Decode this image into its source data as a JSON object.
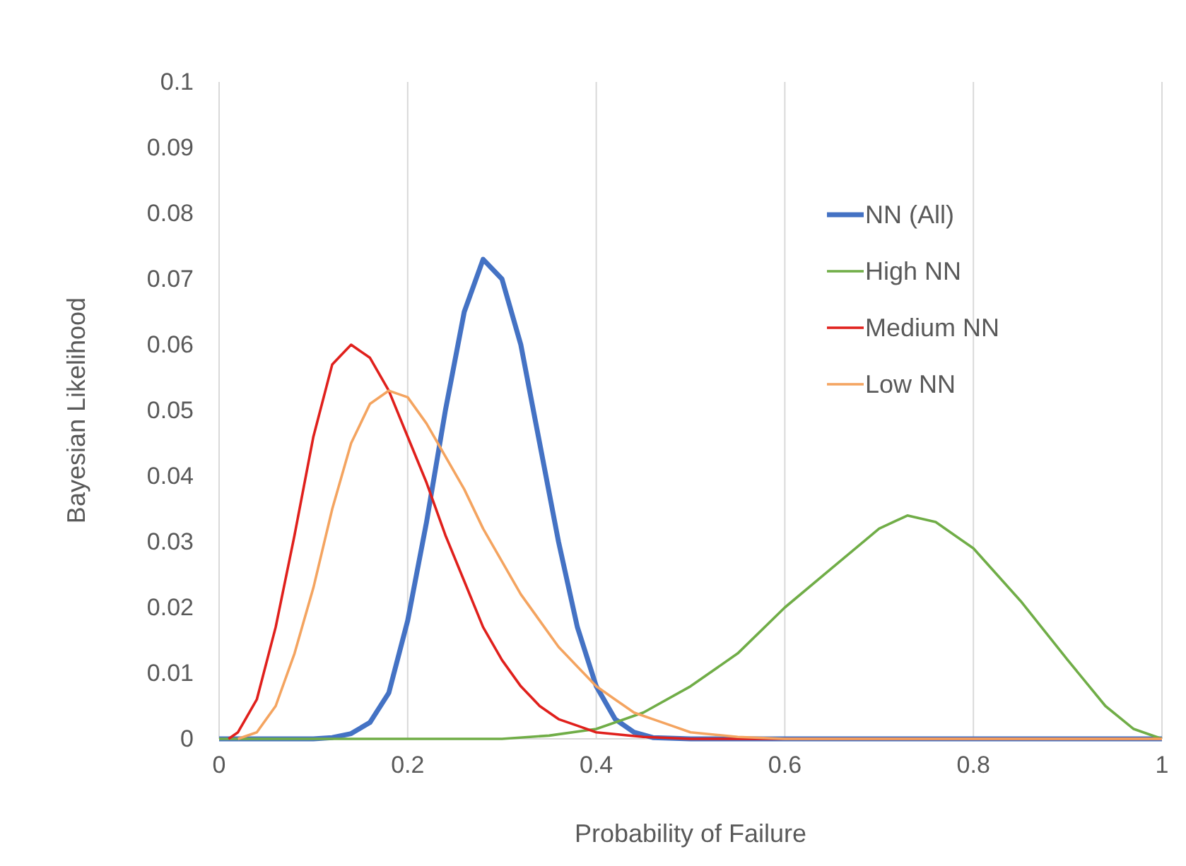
{
  "chart_data": {
    "type": "line",
    "xlabel": "Probability of Failure",
    "ylabel": "Bayesian Likelihood",
    "xlim": [
      0,
      1
    ],
    "ylim": [
      0,
      0.1
    ],
    "xticks": [
      0,
      0.2,
      0.4,
      0.6,
      0.8,
      1
    ],
    "yticks": [
      0,
      0.01,
      0.02,
      0.03,
      0.04,
      0.05,
      0.06,
      0.07,
      0.08,
      0.09,
      0.1
    ],
    "grid": "x",
    "legend": "top right",
    "marker": "none",
    "line_style": "solid",
    "series": [
      {
        "name": "NN (All)",
        "color": "#4472c4",
        "x": [
          0,
          0.1,
          0.12,
          0.14,
          0.16,
          0.18,
          0.2,
          0.22,
          0.24,
          0.26,
          0.28,
          0.3,
          0.32,
          0.34,
          0.36,
          0.38,
          0.4,
          0.42,
          0.44,
          0.46,
          0.5,
          1
        ],
        "values": [
          0,
          0,
          0.0002,
          0.0008,
          0.0025,
          0.007,
          0.018,
          0.033,
          0.05,
          0.065,
          0.073,
          0.07,
          0.06,
          0.045,
          0.03,
          0.017,
          0.008,
          0.003,
          0.001,
          0.0002,
          0,
          0
        ]
      },
      {
        "name": "High NN",
        "color": "#70ad47",
        "x": [
          0,
          0.3,
          0.35,
          0.4,
          0.45,
          0.5,
          0.55,
          0.6,
          0.65,
          0.7,
          0.73,
          0.76,
          0.8,
          0.85,
          0.9,
          0.94,
          0.97,
          1
        ],
        "values": [
          0,
          0,
          0.0005,
          0.0015,
          0.004,
          0.008,
          0.013,
          0.02,
          0.026,
          0.032,
          0.034,
          0.033,
          0.029,
          0.021,
          0.012,
          0.005,
          0.0015,
          0
        ]
      },
      {
        "name": "Medium NN",
        "color": "#e0201c",
        "x": [
          0.01,
          0.02,
          0.04,
          0.06,
          0.08,
          0.1,
          0.12,
          0.14,
          0.16,
          0.18,
          0.2,
          0.22,
          0.24,
          0.26,
          0.28,
          0.3,
          0.32,
          0.34,
          0.36,
          0.38,
          0.4,
          0.45,
          0.5,
          1
        ],
        "values": [
          0,
          0.001,
          0.006,
          0.017,
          0.031,
          0.046,
          0.057,
          0.06,
          0.058,
          0.053,
          0.046,
          0.039,
          0.031,
          0.024,
          0.017,
          0.012,
          0.008,
          0.005,
          0.003,
          0.002,
          0.001,
          0.0003,
          0,
          0
        ]
      },
      {
        "name": "Low NN",
        "color": "#f4a460",
        "x": [
          0.02,
          0.04,
          0.06,
          0.08,
          0.1,
          0.12,
          0.14,
          0.16,
          0.18,
          0.2,
          0.22,
          0.24,
          0.26,
          0.28,
          0.3,
          0.32,
          0.34,
          0.36,
          0.38,
          0.4,
          0.42,
          0.44,
          0.46,
          0.48,
          0.5,
          0.55,
          0.6,
          1
        ],
        "values": [
          0,
          0.001,
          0.005,
          0.013,
          0.023,
          0.035,
          0.045,
          0.051,
          0.053,
          0.052,
          0.048,
          0.043,
          0.038,
          0.032,
          0.027,
          0.022,
          0.018,
          0.014,
          0.011,
          0.008,
          0.006,
          0.004,
          0.003,
          0.002,
          0.001,
          0.0003,
          0,
          0
        ]
      }
    ]
  }
}
